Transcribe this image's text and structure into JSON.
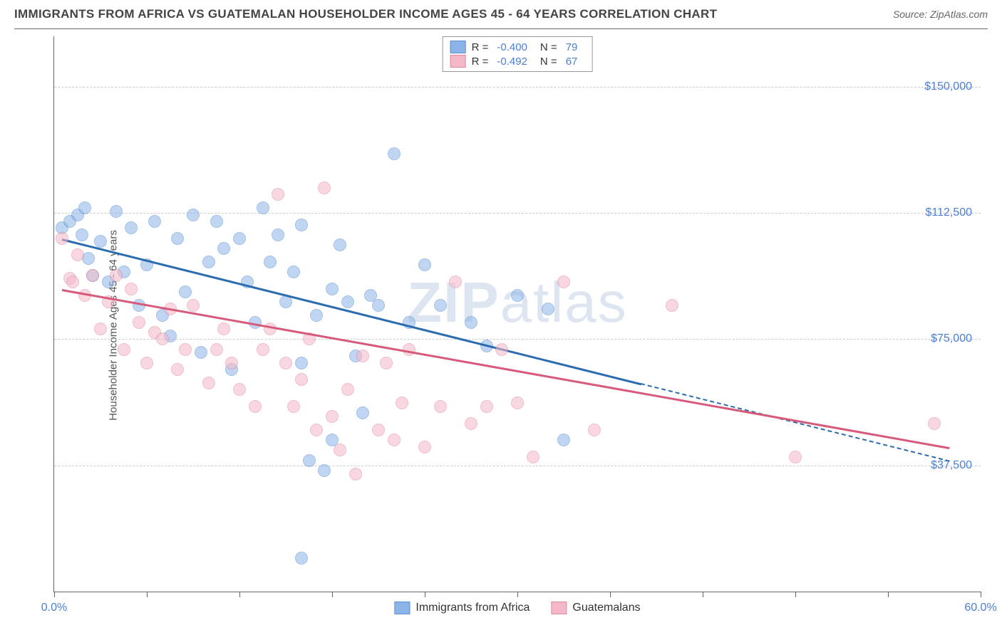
{
  "title": "IMMIGRANTS FROM AFRICA VS GUATEMALAN HOUSEHOLDER INCOME AGES 45 - 64 YEARS CORRELATION CHART",
  "source": "Source: ZipAtlas.com",
  "watermark": "ZIPatlas",
  "chart": {
    "type": "scatter",
    "background_color": "#ffffff",
    "grid_color": "#cccccc",
    "axis_color": "#666666",
    "y_label": "Householder Income Ages 45 - 64 years",
    "y_label_color": "#555555",
    "label_fontsize": 15,
    "tick_label_color": "#4a7fd8",
    "tick_fontsize": 16,
    "x_min": 0.0,
    "x_max": 60.0,
    "x_tick_labels": {
      "min": "0.0%",
      "max": "60.0%"
    },
    "x_minor_tick_count": 10,
    "y_min": 0,
    "y_max": 165000,
    "y_ticks": [
      37500,
      75000,
      112500,
      150000
    ],
    "y_tick_labels": [
      "$37,500",
      "$75,000",
      "$112,500",
      "$150,000"
    ],
    "point_radius": 9,
    "point_opacity": 0.55,
    "series": [
      {
        "name": "Immigrants from Africa",
        "color": "#8db4e8",
        "border_color": "#5a8fd0",
        "line_color": "#2b6cb0",
        "R": "-0.400",
        "N": "79",
        "trend": {
          "x1": 0.5,
          "y1": 105000,
          "x2": 38,
          "y2": 62000
        },
        "trend_dash": {
          "x1": 38,
          "y1": 62000,
          "x2": 58,
          "y2": 39000
        },
        "points": [
          [
            0.5,
            108000
          ],
          [
            1,
            110000
          ],
          [
            1.5,
            112000
          ],
          [
            1.8,
            106000
          ],
          [
            2,
            114000
          ],
          [
            2.2,
            99000
          ],
          [
            2.5,
            94000
          ],
          [
            3,
            104000
          ],
          [
            3.5,
            92000
          ],
          [
            4,
            113000
          ],
          [
            4.5,
            95000
          ],
          [
            5,
            108000
          ],
          [
            5.5,
            85000
          ],
          [
            6,
            97000
          ],
          [
            6.5,
            110000
          ],
          [
            7,
            82000
          ],
          [
            7.5,
            76000
          ],
          [
            8,
            105000
          ],
          [
            8.5,
            89000
          ],
          [
            9,
            112000
          ],
          [
            9.5,
            71000
          ],
          [
            10,
            98000
          ],
          [
            10.5,
            110000
          ],
          [
            11,
            102000
          ],
          [
            11.5,
            66000
          ],
          [
            12,
            105000
          ],
          [
            12.5,
            92000
          ],
          [
            13,
            80000
          ],
          [
            13.5,
            114000
          ],
          [
            14,
            98000
          ],
          [
            14.5,
            106000
          ],
          [
            15,
            86000
          ],
          [
            15.5,
            95000
          ],
          [
            16,
            109000
          ],
          [
            16,
            68000
          ],
          [
            16.5,
            39000
          ],
          [
            17,
            82000
          ],
          [
            17.5,
            36000
          ],
          [
            18,
            90000
          ],
          [
            18,
            45000
          ],
          [
            18.5,
            103000
          ],
          [
            19,
            86000
          ],
          [
            19.5,
            70000
          ],
          [
            20,
            53000
          ],
          [
            20.5,
            88000
          ],
          [
            21,
            85000
          ],
          [
            22,
            130000
          ],
          [
            23,
            80000
          ],
          [
            24,
            97000
          ],
          [
            25,
            85000
          ],
          [
            27,
            80000
          ],
          [
            28,
            73000
          ],
          [
            30,
            88000
          ],
          [
            32,
            84000
          ],
          [
            33,
            45000
          ],
          [
            16,
            10000
          ]
        ]
      },
      {
        "name": "Guatemalans",
        "color": "#f5b8c8",
        "border_color": "#e08aa0",
        "line_color": "#d85a7a",
        "R": "-0.492",
        "N": "67",
        "trend": {
          "x1": 0.5,
          "y1": 90000,
          "x2": 58,
          "y2": 43000
        },
        "points": [
          [
            0.5,
            105000
          ],
          [
            1,
            93000
          ],
          [
            1.2,
            92000
          ],
          [
            1.5,
            100000
          ],
          [
            2,
            88000
          ],
          [
            2.5,
            94000
          ],
          [
            3,
            78000
          ],
          [
            3.5,
            86000
          ],
          [
            4,
            94000
          ],
          [
            4.5,
            72000
          ],
          [
            5,
            90000
          ],
          [
            5.5,
            80000
          ],
          [
            6,
            68000
          ],
          [
            6.5,
            77000
          ],
          [
            7,
            75000
          ],
          [
            7.5,
            84000
          ],
          [
            8,
            66000
          ],
          [
            8.5,
            72000
          ],
          [
            9,
            85000
          ],
          [
            10,
            62000
          ],
          [
            10.5,
            72000
          ],
          [
            11,
            78000
          ],
          [
            11.5,
            68000
          ],
          [
            12,
            60000
          ],
          [
            13,
            55000
          ],
          [
            13.5,
            72000
          ],
          [
            14,
            78000
          ],
          [
            14.5,
            118000
          ],
          [
            15,
            68000
          ],
          [
            15.5,
            55000
          ],
          [
            16,
            63000
          ],
          [
            16.5,
            75000
          ],
          [
            17,
            48000
          ],
          [
            17.5,
            120000
          ],
          [
            18,
            52000
          ],
          [
            18.5,
            42000
          ],
          [
            19,
            60000
          ],
          [
            19.5,
            35000
          ],
          [
            20,
            70000
          ],
          [
            21,
            48000
          ],
          [
            21.5,
            68000
          ],
          [
            22,
            45000
          ],
          [
            22.5,
            56000
          ],
          [
            23,
            72000
          ],
          [
            24,
            43000
          ],
          [
            25,
            55000
          ],
          [
            26,
            92000
          ],
          [
            27,
            50000
          ],
          [
            28,
            55000
          ],
          [
            29,
            72000
          ],
          [
            30,
            56000
          ],
          [
            31,
            40000
          ],
          [
            33,
            92000
          ],
          [
            35,
            48000
          ],
          [
            40,
            85000
          ],
          [
            48,
            40000
          ],
          [
            57,
            50000
          ]
        ]
      }
    ]
  },
  "stats_legend": {
    "R_label": "R =",
    "N_label": "N ="
  }
}
